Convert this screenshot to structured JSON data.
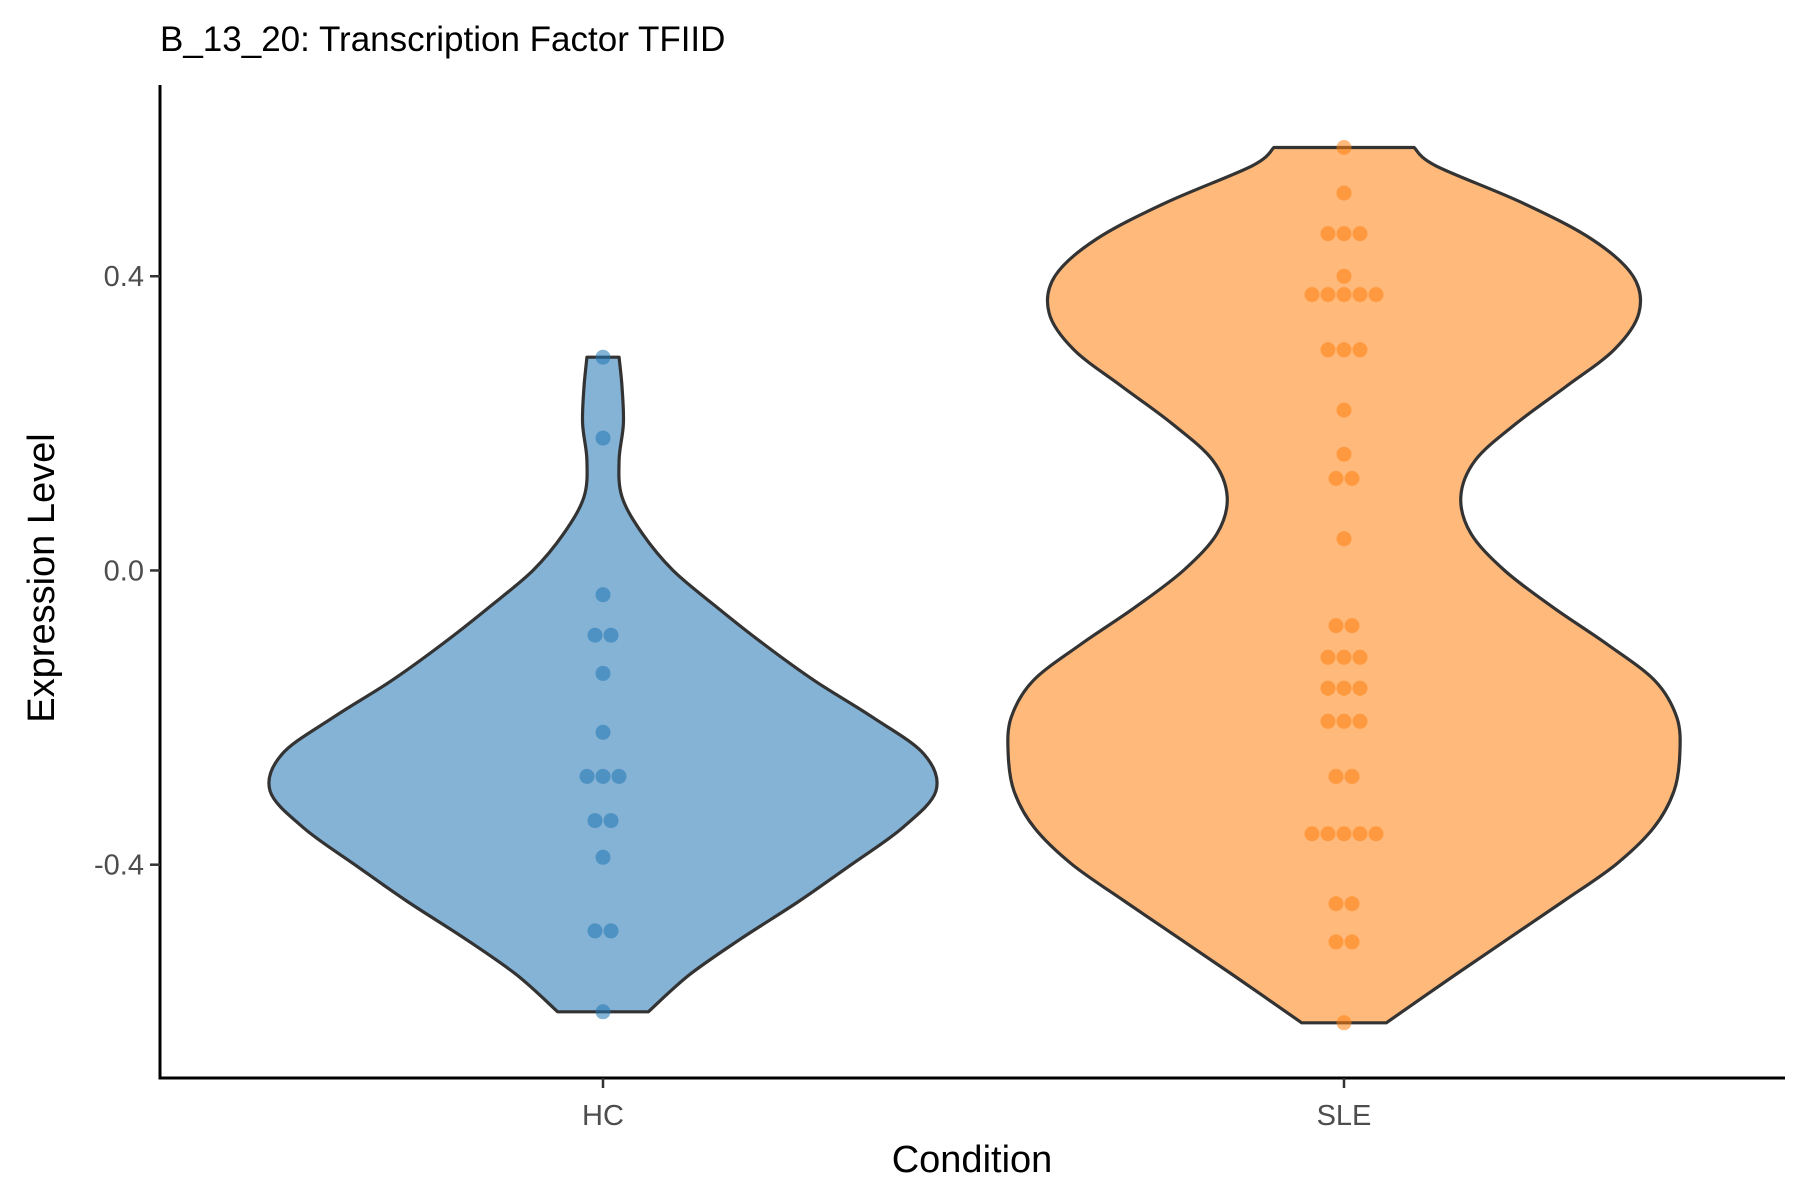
{
  "chart_data": {
    "type": "violin",
    "title": "B_13_20: Transcription Factor TFIID",
    "xlabel": "Condition",
    "ylabel": "Expression Level",
    "ylim": [
      -0.69,
      0.66
    ],
    "yticks": [
      -0.4,
      0.0,
      0.4
    ],
    "ytick_labels": [
      "-0.4",
      "0.0",
      "0.4"
    ],
    "categories": [
      "HC",
      "SLE"
    ],
    "grid": false,
    "legend": "none",
    "series": [
      {
        "category": "HC",
        "color": "#1f77b4",
        "fill_color": "#85b3d6",
        "range": [
          -0.6,
          0.29
        ],
        "density": [
          [
            -0.6,
            0.31
          ],
          [
            -0.55,
            0.59
          ],
          [
            -0.5,
            0.95
          ],
          [
            -0.45,
            1.34
          ],
          [
            -0.4,
            1.7
          ],
          [
            -0.35,
            2.05
          ],
          [
            -0.3,
            2.28
          ],
          [
            -0.25,
            2.2
          ],
          [
            -0.2,
            1.85
          ],
          [
            -0.15,
            1.45
          ],
          [
            -0.1,
            1.1
          ],
          [
            -0.05,
            0.78
          ],
          [
            0.0,
            0.48
          ],
          [
            0.05,
            0.27
          ],
          [
            0.1,
            0.13
          ],
          [
            0.15,
            0.11
          ],
          [
            0.2,
            0.14
          ],
          [
            0.25,
            0.13
          ],
          [
            0.29,
            0.11
          ]
        ],
        "points": [
          -0.6,
          -0.49,
          -0.49,
          -0.39,
          -0.34,
          -0.34,
          -0.28,
          -0.28,
          -0.28,
          -0.22,
          -0.14,
          -0.088,
          -0.088,
          -0.033,
          0.18,
          0.29
        ]
      },
      {
        "category": "SLE",
        "color": "#ff7f0e",
        "fill_color": "#ffb97b",
        "range": [
          -0.615,
          0.575
        ],
        "density": [
          [
            -0.615,
            0.29
          ],
          [
            -0.55,
            0.76
          ],
          [
            -0.5,
            1.13
          ],
          [
            -0.45,
            1.5
          ],
          [
            -0.4,
            1.86
          ],
          [
            -0.35,
            2.12
          ],
          [
            -0.3,
            2.26
          ],
          [
            -0.25,
            2.3
          ],
          [
            -0.2,
            2.28
          ],
          [
            -0.15,
            2.13
          ],
          [
            -0.1,
            1.8
          ],
          [
            -0.05,
            1.43
          ],
          [
            0.0,
            1.1
          ],
          [
            0.05,
            0.87
          ],
          [
            0.1,
            0.8
          ],
          [
            0.15,
            0.9
          ],
          [
            0.2,
            1.18
          ],
          [
            0.25,
            1.52
          ],
          [
            0.3,
            1.85
          ],
          [
            0.35,
            2.02
          ],
          [
            0.4,
            1.98
          ],
          [
            0.45,
            1.7
          ],
          [
            0.5,
            1.22
          ],
          [
            0.55,
            0.63
          ],
          [
            0.575,
            0.48
          ]
        ],
        "points": [
          -0.615,
          -0.505,
          -0.505,
          -0.453,
          -0.453,
          -0.358,
          -0.358,
          -0.358,
          -0.358,
          -0.358,
          -0.28,
          -0.28,
          -0.205,
          -0.205,
          -0.205,
          -0.16,
          -0.16,
          -0.16,
          -0.118,
          -0.118,
          -0.118,
          -0.075,
          -0.075,
          0.043,
          0.125,
          0.125,
          0.158,
          0.218,
          0.3,
          0.3,
          0.3,
          0.375,
          0.375,
          0.375,
          0.375,
          0.375,
          0.4,
          0.458,
          0.458,
          0.458,
          0.513,
          0.575
        ]
      }
    ]
  }
}
